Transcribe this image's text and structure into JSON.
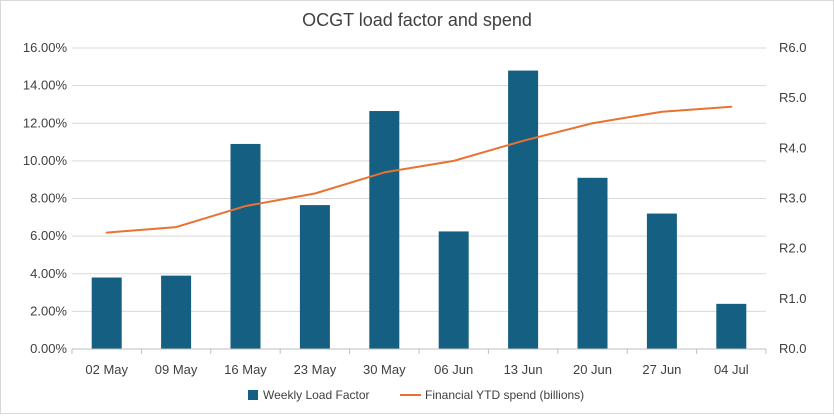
{
  "chart_data": {
    "type": "bar+line",
    "title": "OCGT load factor and spend",
    "categories": [
      "02 May",
      "09 May",
      "16 May",
      "23 May",
      "30 May",
      "06 Jun",
      "13 Jun",
      "20 Jun",
      "27 Jun",
      "04 Jul"
    ],
    "series": [
      {
        "name": "Weekly Load Factor",
        "type": "bar",
        "axis": "left",
        "color": "#156082",
        "values": [
          3.8,
          3.9,
          10.9,
          7.65,
          12.65,
          6.25,
          14.8,
          9.1,
          7.2,
          2.4
        ]
      },
      {
        "name": "Financial YTD spend (billions)",
        "type": "line",
        "axis": "right",
        "color": "#E97132",
        "values": [
          2.32,
          2.43,
          2.85,
          3.1,
          3.52,
          3.75,
          4.15,
          4.5,
          4.73,
          4.83
        ]
      }
    ],
    "y_left": {
      "ylim": [
        0,
        16
      ],
      "ticks": [
        0,
        2,
        4,
        6,
        8,
        10,
        12,
        14,
        16
      ],
      "tick_labels": [
        "0.00%",
        "2.00%",
        "4.00%",
        "6.00%",
        "8.00%",
        "10.00%",
        "12.00%",
        "14.00%",
        "16.00%"
      ]
    },
    "y_right": {
      "ylim": [
        0,
        6
      ],
      "ticks": [
        0,
        1,
        2,
        3,
        4,
        5,
        6
      ],
      "tick_labels": [
        "R0.0",
        "R1.0",
        "R2.0",
        "R3.0",
        "R4.0",
        "R5.0",
        "R6.0"
      ]
    },
    "grid": true,
    "legend_position": "bottom"
  }
}
